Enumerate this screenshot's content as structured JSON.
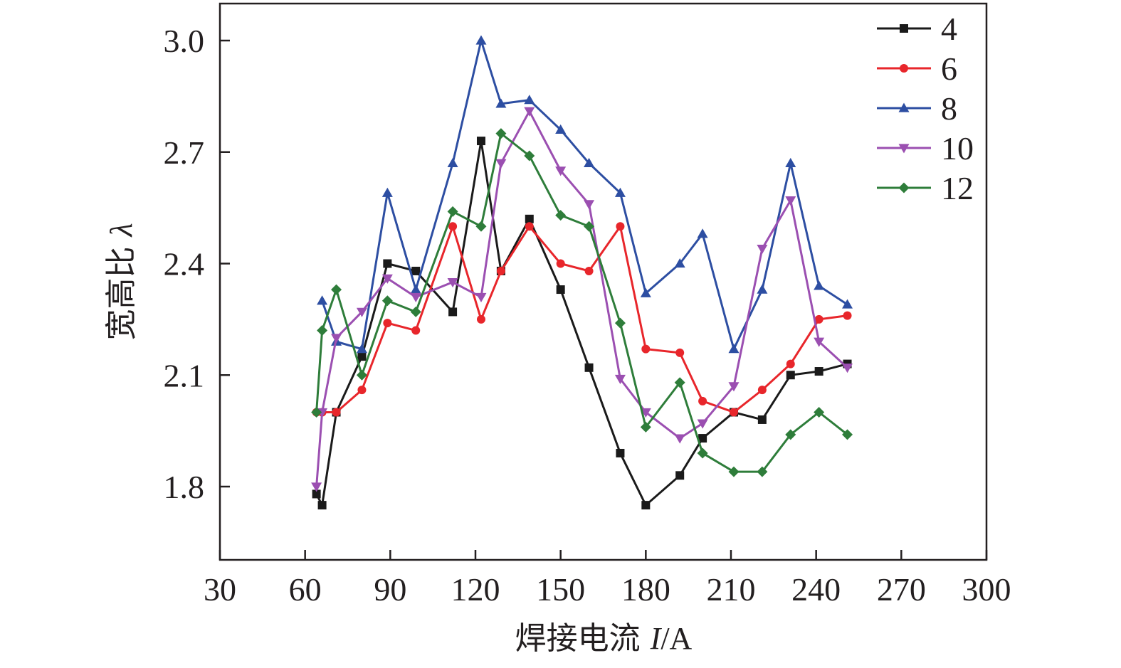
{
  "chart_data": {
    "type": "line",
    "title": "",
    "xlabel_text": "焊接电流 ",
    "xlabel_var": "I",
    "xlabel_unit": "/A",
    "ylabel_text": "宽高比 ",
    "ylabel_var": "λ",
    "xlim": [
      30,
      300
    ],
    "ylim": [
      1.6,
      3.1
    ],
    "xticks": [
      30,
      60,
      90,
      120,
      150,
      180,
      210,
      240,
      270,
      300
    ],
    "xtick_labels": [
      "30",
      "60",
      "90",
      "120",
      "150",
      "180",
      "210",
      "240",
      "270",
      "300"
    ],
    "yticks": [
      1.8,
      2.1,
      2.4,
      2.7,
      3.0
    ],
    "ytick_labels": [
      "1.8",
      "2.1",
      "2.4",
      "2.7",
      "3.0"
    ],
    "grid": false,
    "legend_position": "top-right",
    "x": [
      64,
      66,
      71,
      80,
      89,
      99,
      112,
      122,
      129,
      139,
      150,
      160,
      171,
      180,
      192,
      200,
      211,
      221,
      231,
      241,
      251
    ],
    "series": [
      {
        "name": "4",
        "color": "#1a1a1a",
        "marker": "square",
        "values": [
          1.78,
          1.75,
          2.0,
          2.15,
          2.4,
          2.38,
          2.27,
          2.73,
          2.38,
          2.52,
          2.33,
          2.12,
          1.89,
          1.75,
          1.83,
          1.93,
          2.0,
          1.98,
          2.1,
          2.11,
          2.13
        ]
      },
      {
        "name": "6",
        "color": "#e8262b",
        "marker": "circle",
        "values": [
          2.0,
          2.0,
          2.0,
          2.06,
          2.24,
          2.22,
          2.5,
          2.25,
          2.38,
          2.5,
          2.4,
          2.38,
          2.5,
          2.17,
          2.16,
          2.03,
          2.0,
          2.06,
          2.13,
          2.25,
          2.26
        ]
      },
      {
        "name": "8",
        "color": "#2d4ea2",
        "marker": "triangle-up",
        "values": [
          null,
          2.3,
          2.19,
          2.17,
          2.59,
          2.33,
          2.67,
          3.0,
          2.83,
          2.84,
          2.76,
          2.67,
          2.59,
          2.32,
          2.4,
          2.48,
          2.17,
          2.33,
          2.67,
          2.34,
          2.29
        ]
      },
      {
        "name": "10",
        "color": "#9b4fb1",
        "marker": "triangle-down",
        "values": [
          1.8,
          2.0,
          2.2,
          2.27,
          2.36,
          2.31,
          2.35,
          2.31,
          2.67,
          2.81,
          2.65,
          2.56,
          2.09,
          2.0,
          1.93,
          1.97,
          2.07,
          2.44,
          2.57,
          2.19,
          2.12
        ]
      },
      {
        "name": "12",
        "color": "#2e7d3a",
        "marker": "diamond",
        "values": [
          2.0,
          2.22,
          2.33,
          2.1,
          2.3,
          2.27,
          2.54,
          2.5,
          2.75,
          2.69,
          2.53,
          2.5,
          2.24,
          1.96,
          2.08,
          1.89,
          1.84,
          1.84,
          1.94,
          2.0,
          1.94
        ]
      }
    ]
  }
}
